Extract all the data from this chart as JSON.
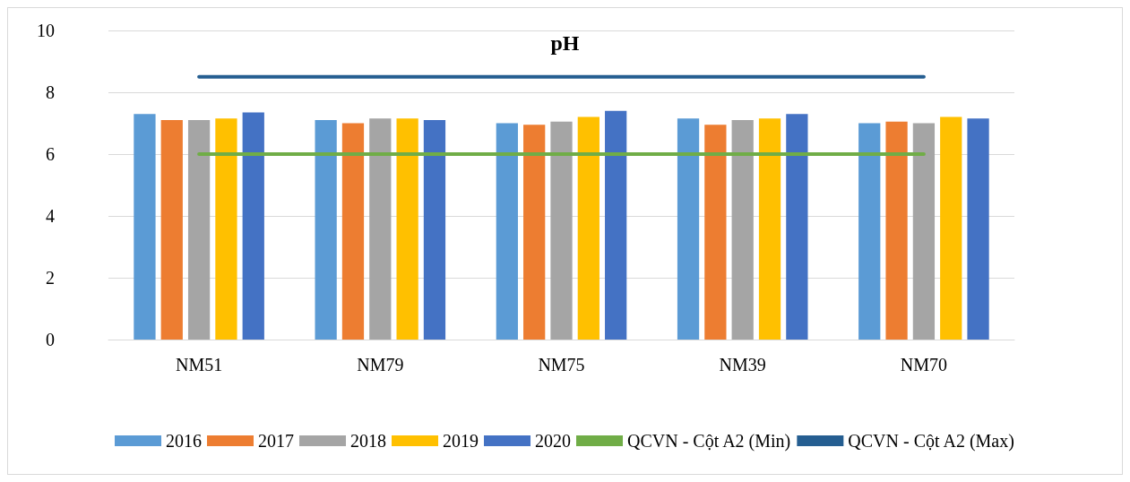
{
  "chart_data": {
    "type": "bar",
    "title": "pH",
    "categories": [
      "NM51",
      "NM79",
      "NM75",
      "NM39",
      "NM70"
    ],
    "series": [
      {
        "name": "2016",
        "color": "#5b9bd5",
        "values": [
          7.3,
          7.1,
          7.0,
          7.15,
          7.0
        ]
      },
      {
        "name": "2017",
        "color": "#ed7d31",
        "values": [
          7.1,
          7.0,
          6.95,
          6.95,
          7.05
        ]
      },
      {
        "name": "2018",
        "color": "#a5a5a5",
        "values": [
          7.1,
          7.15,
          7.05,
          7.1,
          7.0
        ]
      },
      {
        "name": "2019",
        "color": "#ffc000",
        "values": [
          7.15,
          7.15,
          7.2,
          7.15,
          7.2
        ]
      },
      {
        "name": "2020",
        "color": "#4472c4",
        "values": [
          7.35,
          7.1,
          7.4,
          7.3,
          7.15
        ]
      },
      {
        "name": "QCVN - Cột A2 (Min)",
        "type": "line",
        "color": "#70ad47",
        "values": [
          6,
          6,
          6,
          6,
          6
        ]
      },
      {
        "name": "QCVN - Cột A2 (Max)",
        "type": "line",
        "color": "#255e91",
        "values": [
          8.5,
          8.5,
          8.5,
          8.5,
          8.5
        ]
      }
    ],
    "ylim": [
      0,
      10
    ],
    "yticks": [
      0,
      2,
      4,
      6,
      8,
      10
    ],
    "grid": "y",
    "legend": "bottom",
    "marker": "none",
    "line_style": "solid"
  }
}
